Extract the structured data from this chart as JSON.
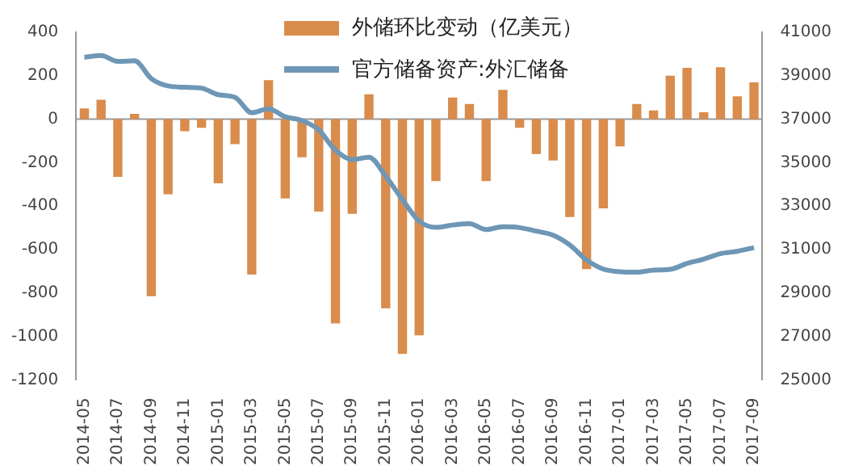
{
  "chart_data": {
    "type": "bar",
    "categories": [
      "2014-05",
      null,
      "2014-07",
      null,
      "2014-09",
      null,
      "2014-11",
      null,
      "2015-01",
      null,
      "2015-03",
      null,
      "2015-05",
      null,
      "2015-07",
      null,
      "2015-09",
      null,
      "2015-11",
      null,
      "2016-01",
      null,
      "2016-03",
      null,
      "2016-05",
      null,
      "2016-07",
      null,
      "2016-09",
      null,
      "2016-11",
      null,
      "2017-01",
      null,
      "2017-03",
      null,
      "2017-05",
      null,
      "2017-07",
      null,
      "2017-09"
    ],
    "series": [
      {
        "name": "外储环比变动（亿美元）",
        "color": "#d98c4c",
        "values": [
          50,
          90,
          -265,
          25,
          -815,
          -345,
          -55,
          -40,
          -295,
          -115,
          -715,
          180,
          -365,
          -175,
          -425,
          -940,
          -435,
          115,
          -870,
          -1080,
          -995,
          -285,
          100,
          70,
          -285,
          135,
          -40,
          -160,
          -190,
          -450,
          -690,
          -410,
          -125,
          70,
          40,
          200,
          236,
          32,
          239,
          105,
          170
        ]
      },
      {
        "name": "官方储备资产:外汇储备",
        "type": "line",
        "axis": "y2",
        "color": "#6e97b6",
        "values": [
          39850,
          39930,
          39660,
          39690,
          38870,
          38530,
          38470,
          38430,
          38130,
          38010,
          37300,
          37480,
          37110,
          36940,
          36510,
          35570,
          35140,
          35250,
          34380,
          33300,
          32310,
          32020,
          32130,
          32190,
          31920,
          32050,
          32010,
          31850,
          31660,
          31210,
          30520,
          30100,
          29980,
          29960,
          30050,
          30090,
          30360,
          30560,
          30810,
          30920,
          31090
        ]
      }
    ],
    "ylim": [
      -1200,
      400
    ],
    "yticks": [
      -1200,
      -1000,
      -800,
      -600,
      -400,
      -200,
      0,
      200,
      400
    ],
    "y2lim": [
      25000,
      41000
    ],
    "y2ticks": [
      25000,
      27000,
      29000,
      31000,
      33000,
      35000,
      37000,
      39000,
      41000
    ],
    "ref_lines": [
      {
        "axis": "y",
        "value": 0,
        "color": "#999999"
      }
    ],
    "grid": false,
    "legend": "top",
    "marker": "none"
  }
}
